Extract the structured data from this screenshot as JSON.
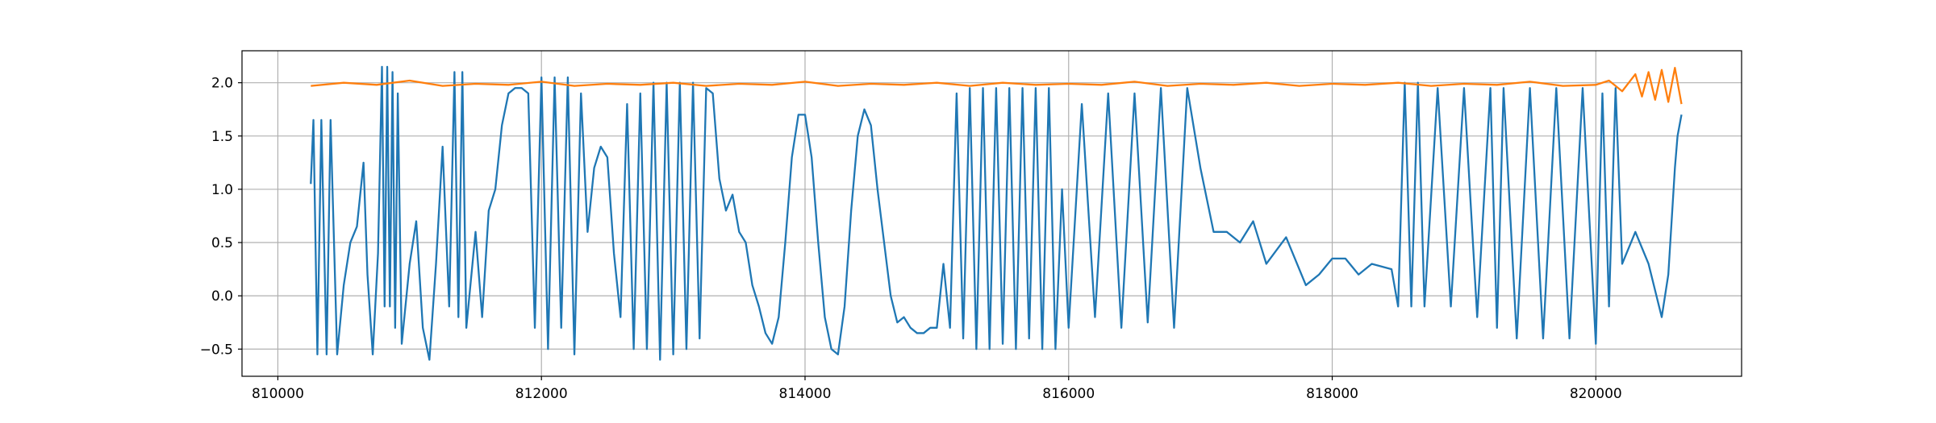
{
  "chart_data": {
    "type": "line",
    "xlim": [
      809728,
      821106
    ],
    "ylim": [
      -0.755,
      2.3
    ],
    "xticks": [
      810000,
      812000,
      814000,
      816000,
      818000,
      820000
    ],
    "yticks": [
      {
        "value": -0.5,
        "label": "−0.5"
      },
      {
        "value": 0,
        "label": "0.0"
      },
      0.5,
      {
        "value": 1,
        "label": "1.0"
      },
      1.5,
      {
        "value": 2,
        "label": "2.0"
      }
    ],
    "grid": true,
    "series": [
      {
        "color": "#1f77b4",
        "x": [
          810250,
          810270,
          810300,
          810330,
          810370,
          810400,
          810450,
          810500,
          810550,
          810600,
          810650,
          810680,
          810720,
          810760,
          810790,
          810810,
          810830,
          810850,
          810870,
          810890,
          810910,
          810940,
          811000,
          811050,
          811100,
          811150,
          811200,
          811250,
          811300,
          811340,
          811370,
          811400,
          811430,
          811500,
          811550,
          811600,
          811650,
          811700,
          811750,
          811800,
          811850,
          811900,
          811950,
          812000,
          812050,
          812100,
          812150,
          812200,
          812250,
          812300,
          812350,
          812400,
          812450,
          812500,
          812550,
          812600,
          812650,
          812700,
          812750,
          812800,
          812850,
          812900,
          812950,
          813000,
          813050,
          813100,
          813150,
          813200,
          813250,
          813300,
          813350,
          813400,
          813450,
          813500,
          813550,
          813600,
          813650,
          813700,
          813750,
          813800,
          813850,
          813900,
          813950,
          814000,
          814050,
          814100,
          814150,
          814200,
          814250,
          814300,
          814350,
          814400,
          814450,
          814500,
          814550,
          814600,
          814650,
          814700,
          814750,
          814800,
          814850,
          814900,
          814950,
          815000,
          815050,
          815100,
          815150,
          815200,
          815250,
          815300,
          815350,
          815400,
          815450,
          815500,
          815550,
          815600,
          815650,
          815700,
          815750,
          815800,
          815850,
          815900,
          815950,
          816000,
          816100,
          816200,
          816300,
          816400,
          816500,
          816600,
          816700,
          816800,
          816900,
          817000,
          817100,
          817200,
          817300,
          817400,
          817500,
          817650,
          817800,
          817900,
          818000,
          818100,
          818200,
          818300,
          818450,
          818500,
          818550,
          818600,
          818650,
          818700,
          818800,
          818900,
          819000,
          819100,
          819200,
          819250,
          819300,
          819400,
          819500,
          819600,
          819700,
          819800,
          819900,
          820000,
          820050,
          820100,
          820150,
          820200,
          820300,
          820400,
          820500,
          820550,
          820600,
          820620,
          820650
        ],
        "values": [
          1.05,
          1.65,
          -0.55,
          1.65,
          -0.55,
          1.65,
          -0.55,
          0.1,
          0.5,
          0.65,
          1.25,
          0.2,
          -0.55,
          0.4,
          2.15,
          -0.1,
          2.15,
          -0.1,
          2.1,
          -0.3,
          1.9,
          -0.45,
          0.3,
          0.7,
          -0.3,
          -0.6,
          0.3,
          1.4,
          -0.1,
          2.1,
          -0.2,
          2.1,
          -0.3,
          0.6,
          -0.2,
          0.8,
          1.0,
          1.6,
          1.9,
          1.95,
          1.95,
          1.9,
          -0.3,
          2.05,
          -0.5,
          2.05,
          -0.3,
          2.05,
          -0.55,
          1.9,
          0.6,
          1.2,
          1.4,
          1.3,
          0.4,
          -0.2,
          1.8,
          -0.5,
          1.9,
          -0.5,
          2.0,
          -0.6,
          2.0,
          -0.55,
          2.0,
          -0.5,
          2.0,
          -0.4,
          1.95,
          1.9,
          1.1,
          0.8,
          0.95,
          0.6,
          0.5,
          0.1,
          -0.1,
          -0.35,
          -0.45,
          -0.2,
          0.5,
          1.3,
          1.7,
          1.7,
          1.3,
          0.5,
          -0.2,
          -0.5,
          -0.55,
          -0.1,
          0.8,
          1.5,
          1.75,
          1.6,
          1.0,
          0.5,
          0.0,
          -0.25,
          -0.2,
          -0.3,
          -0.35,
          -0.35,
          -0.3,
          -0.3,
          0.3,
          -0.3,
          1.9,
          -0.4,
          1.95,
          -0.5,
          1.95,
          -0.5,
          1.95,
          -0.45,
          1.95,
          -0.5,
          1.95,
          -0.4,
          1.95,
          -0.5,
          1.95,
          -0.5,
          1.0,
          -0.3,
          1.8,
          -0.2,
          1.9,
          -0.3,
          1.9,
          -0.25,
          1.95,
          -0.3,
          1.95,
          1.2,
          0.6,
          0.6,
          0.5,
          0.7,
          0.3,
          0.55,
          0.1,
          0.2,
          0.35,
          0.35,
          0.2,
          0.3,
          0.25,
          -0.1,
          2.0,
          -0.1,
          2.0,
          -0.1,
          1.95,
          -0.1,
          1.95,
          -0.2,
          1.95,
          -0.3,
          1.95,
          -0.4,
          1.95,
          -0.4,
          1.95,
          -0.4,
          1.95,
          -0.45,
          1.9,
          -0.1,
          1.95,
          0.3,
          0.6,
          0.3,
          -0.2,
          0.2,
          1.2,
          1.5,
          1.7
        ]
      },
      {
        "color": "#ff7f0e",
        "x": [
          810250,
          810500,
          810750,
          811000,
          811250,
          811500,
          811750,
          812000,
          812250,
          812500,
          812750,
          813000,
          813250,
          813500,
          813750,
          814000,
          814250,
          814500,
          814750,
          815000,
          815250,
          815500,
          815750,
          816000,
          816250,
          816500,
          816750,
          817000,
          817250,
          817500,
          817750,
          818000,
          818250,
          818500,
          818750,
          819000,
          819250,
          819500,
          819750,
          820000,
          820100,
          820200,
          820300,
          820350,
          820400,
          820450,
          820500,
          820550,
          820600,
          820650
        ],
        "values": [
          1.97,
          2.0,
          1.98,
          2.02,
          1.97,
          1.99,
          1.98,
          2.01,
          1.97,
          1.99,
          1.98,
          2.0,
          1.97,
          1.99,
          1.98,
          2.01,
          1.97,
          1.99,
          1.98,
          2.0,
          1.97,
          2.0,
          1.98,
          1.99,
          1.98,
          2.01,
          1.97,
          1.99,
          1.98,
          2.0,
          1.97,
          1.99,
          1.98,
          2.0,
          1.97,
          1.99,
          1.98,
          2.01,
          1.97,
          1.98,
          2.02,
          1.92,
          2.08,
          1.87,
          2.1,
          1.84,
          2.12,
          1.82,
          2.14,
          1.8
        ]
      }
    ]
  }
}
